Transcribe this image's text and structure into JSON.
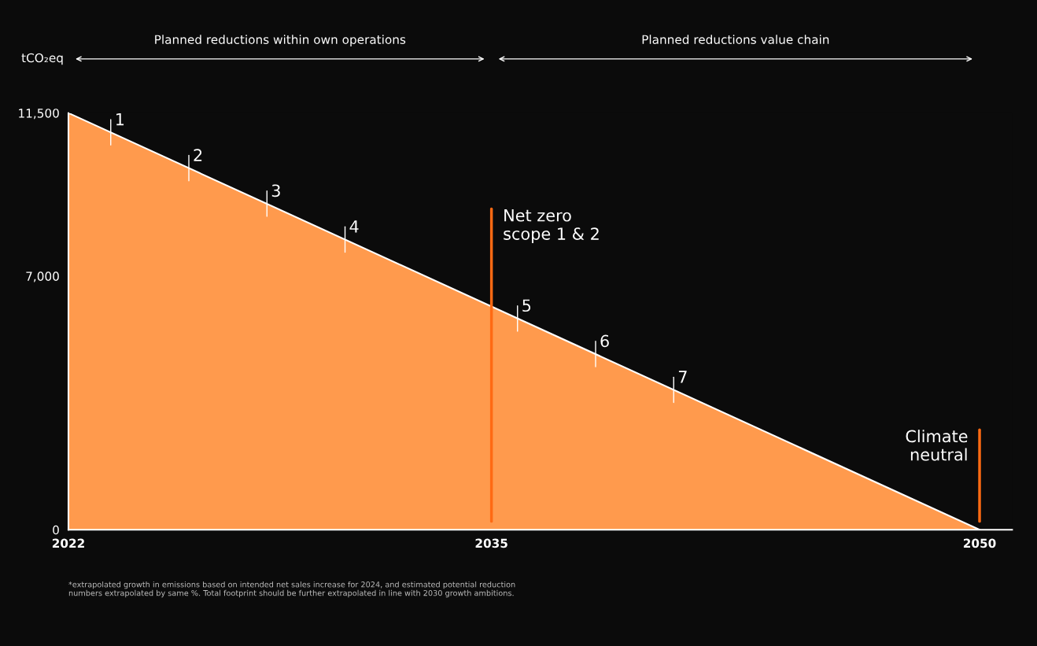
{
  "chart_data": {
    "type": "area",
    "ylabel": "tCO₂eq",
    "x": [
      2022,
      2050
    ],
    "series": [
      {
        "color": "#ff9a4d",
        "values": [
          11500,
          0
        ]
      }
    ],
    "xlim": [
      2022,
      2051
    ],
    "ylim": [
      0,
      11500
    ],
    "xticks": [
      2022,
      2035,
      2050
    ],
    "yticks": [
      0,
      {
        "value": 7000,
        "label": "7,000"
      },
      {
        "value": 11500,
        "label": "11,500"
      }
    ],
    "grid": false,
    "ref_lines": [
      {
        "axis": "x",
        "value": 2035,
        "label": "Net zero\nscope 1 & 2",
        "color": "#ff6a13"
      },
      {
        "axis": "x",
        "value": 2050,
        "label": "Climate\nneutral",
        "color": "#ff6a13"
      }
    ],
    "annotations": [
      "Planned reductions within own operations",
      "Planned reductions value chain",
      {
        "text": "1",
        "x": 2023.3,
        "y": 10970
      },
      {
        "text": "2",
        "x": 2025.7,
        "y": 9980
      },
      {
        "text": "3",
        "x": 2028.1,
        "y": 9000
      },
      {
        "text": "4",
        "x": 2030.5,
        "y": 8010
      },
      {
        "text": "5",
        "x": 2035.8,
        "y": 5830
      },
      {
        "text": "6",
        "x": 2038.2,
        "y": 4850
      },
      {
        "text": "7",
        "x": 2040.6,
        "y": 3860
      },
      "*extrapolated growth in emissions based on intended net sales increase for 2024, and estimated potential reduction\nnumbers extrapolated by same %. Total footprint should be further extrapolated in line with 2030 growth ambitions."
    ]
  }
}
